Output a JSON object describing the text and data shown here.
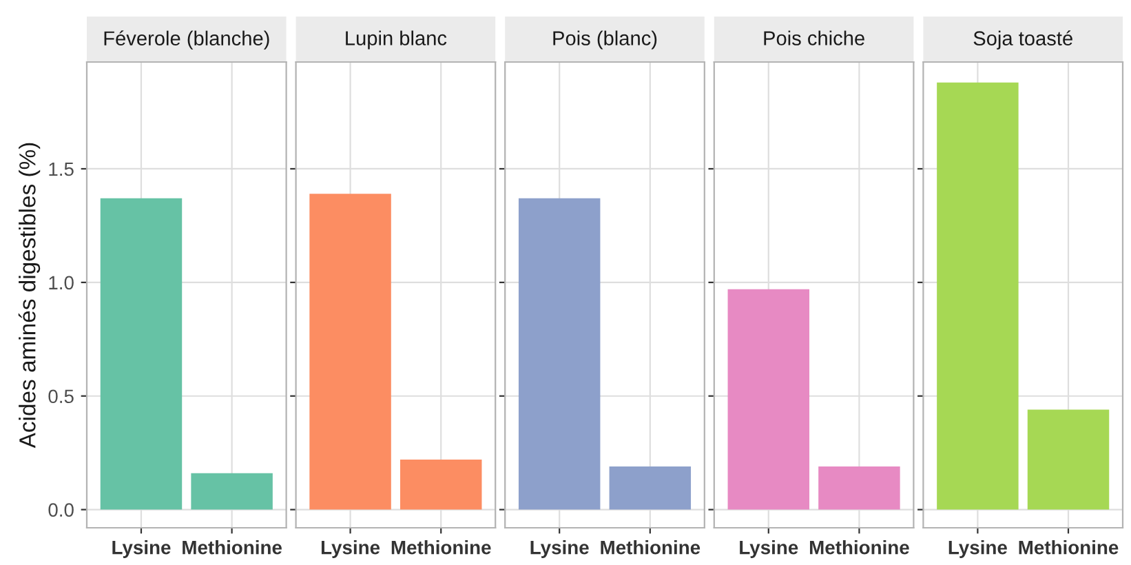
{
  "chart_data": [
    {
      "type": "bar",
      "title": "Féverole (blanche)",
      "ylabel": "Acides aminés digestibles (%)",
      "categories": [
        "Lysine",
        "Methionine"
      ],
      "values": [
        1.37,
        0.16
      ],
      "color": "#66c2a5",
      "ylim": [
        -0.08,
        1.97
      ],
      "yticks": [
        {
          "value": 0,
          "label": "0.0"
        },
        0.5,
        {
          "value": 1,
          "label": "1.0"
        },
        1.5
      ],
      "grid": true
    },
    {
      "type": "bar",
      "title": "Lupin blanc",
      "categories": [
        "Lysine",
        "Methionine"
      ],
      "values": [
        1.39,
        0.22
      ],
      "color": "#fc8d62",
      "ylim": [
        -0.08,
        1.97
      ],
      "grid": true,
      "tick_labels": "x"
    },
    {
      "type": "bar",
      "title": "Pois (blanc)",
      "categories": [
        "Lysine",
        "Methionine"
      ],
      "values": [
        1.37,
        0.19
      ],
      "color": "#8da0cb",
      "ylim": [
        -0.08,
        1.97
      ],
      "grid": true,
      "tick_labels": "x"
    },
    {
      "type": "bar",
      "title": "Pois chiche",
      "categories": [
        "Lysine",
        "Methionine"
      ],
      "values": [
        0.97,
        0.19
      ],
      "color": "#e78ac3",
      "ylim": [
        -0.08,
        1.97
      ],
      "grid": true,
      "tick_labels": "x"
    },
    {
      "type": "bar",
      "title": "Soja toasté",
      "categories": [
        "Lysine",
        "Methionine"
      ],
      "values": [
        1.88,
        0.44
      ],
      "color": "#a6d854",
      "ylim": [
        -0.08,
        1.97
      ],
      "grid": true,
      "tick_labels": "x"
    }
  ]
}
